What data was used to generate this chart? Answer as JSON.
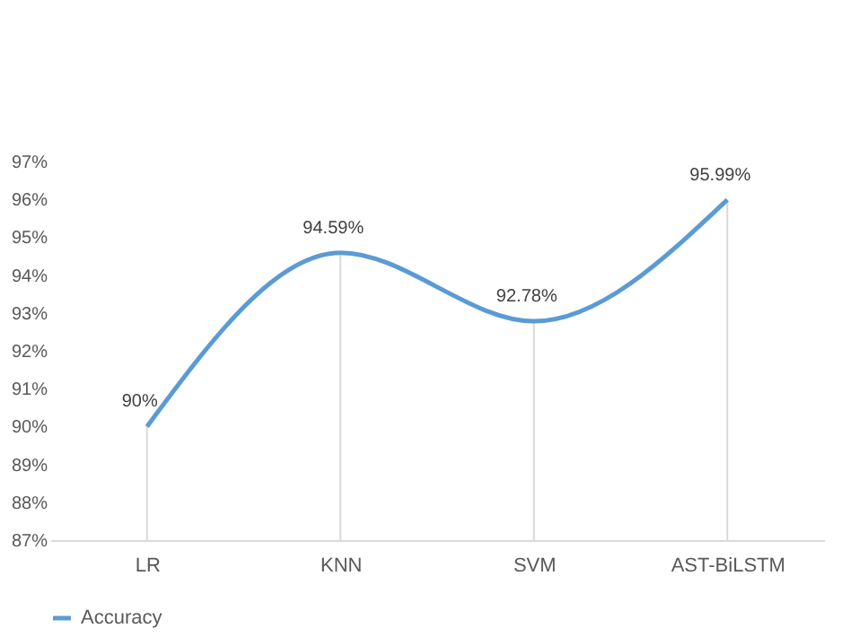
{
  "chart_data": {
    "type": "line",
    "categories": [
      "LR",
      "KNN",
      "SVM",
      "AST-BiLSTM"
    ],
    "series": [
      {
        "name": "Accuracy",
        "color": "#5b9bd5",
        "values": [
          90,
          94.59,
          92.78,
          95.99
        ]
      }
    ],
    "value_labels": [
      "90%",
      "94.59%",
      "92.78%",
      "95.99%"
    ],
    "ylim": [
      87,
      97
    ],
    "yticks": [
      {
        "value": 87,
        "label": "87%"
      },
      {
        "value": 88,
        "label": "88%"
      },
      {
        "value": 89,
        "label": "89%"
      },
      {
        "value": 90,
        "label": "90%"
      },
      {
        "value": 91,
        "label": "91%"
      },
      {
        "value": 92,
        "label": "92%"
      },
      {
        "value": 93,
        "label": "93%"
      },
      {
        "value": 94,
        "label": "94%"
      },
      {
        "value": 95,
        "label": "95%"
      },
      {
        "value": 96,
        "label": "96%"
      },
      {
        "value": 97,
        "label": "97%"
      }
    ],
    "grid": "x",
    "legend": "bottom",
    "marker": "none",
    "line_style": "solid"
  }
}
